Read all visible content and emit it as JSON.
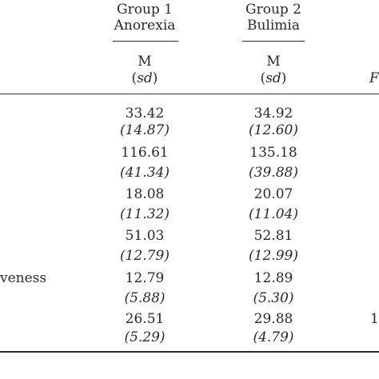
{
  "table": {
    "groups": [
      {
        "number_label": "Group 1",
        "name": "Anorexia",
        "stat_label": "M",
        "sd_label": "sd"
      },
      {
        "number_label": "Group 2",
        "name": "Bulimia",
        "stat_label": "M",
        "sd_label": "sd"
      }
    ],
    "partial_third_header": "F",
    "rows": [
      {
        "label": "",
        "g1_mean": "33.42",
        "g1_sd": "(14.87)",
        "g2_mean": "34.92",
        "g2_sd": "(12.60)",
        "f_partial": ""
      },
      {
        "label": "",
        "g1_mean": "116.61",
        "g1_sd": "(41.34)",
        "g2_mean": "135.18",
        "g2_sd": "(39.88)",
        "f_partial": ""
      },
      {
        "label": "",
        "g1_mean": "18.08",
        "g1_sd": "(11.32)",
        "g2_mean": "20.07",
        "g2_sd": "(11.04)",
        "f_partial": ""
      },
      {
        "label": "",
        "g1_mean": "51.03",
        "g1_sd": "(12.79)",
        "g2_mean": "52.81",
        "g2_sd": "(12.99)",
        "f_partial": ""
      },
      {
        "label": "veness",
        "g1_mean": "12.79",
        "g1_sd": "(5.88)",
        "g2_mean": "12.89",
        "g2_sd": "(5.30)",
        "f_partial": ""
      },
      {
        "label": "",
        "g1_mean": "26.51",
        "g1_sd": "(5.29)",
        "g2_mean": "29.88",
        "g2_sd": "(4.79)",
        "f_partial": "1"
      }
    ]
  }
}
